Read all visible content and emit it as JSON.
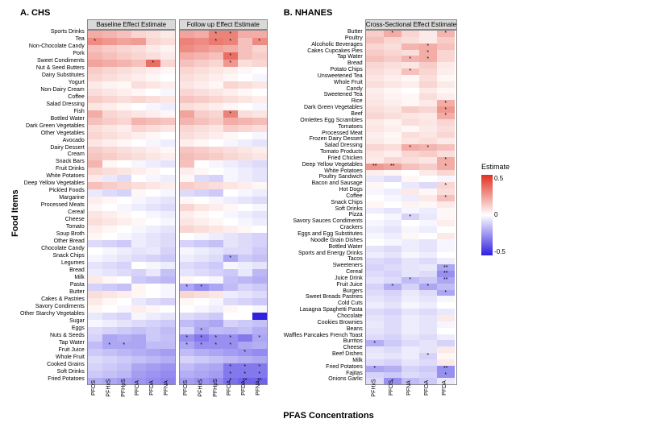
{
  "y_axis_label": "Food Items",
  "x_axis_label": "PFAS Concentrations",
  "legend": {
    "title": "Estimate",
    "max": 0.5,
    "mid": 0.0,
    "min": -0.5,
    "color_max": "#e03020",
    "color_mid": "#ffffff",
    "color_min": "#3020e0"
  },
  "panel_a": {
    "title": "A. CHS",
    "sub_headers": [
      "Baseline Effect Estimate",
      "Follow up Effect Estimate"
    ],
    "x_labels": [
      "PFOS",
      "PFHxS",
      "PFHpS",
      "PFOA",
      "PFDA",
      "PFNA"
    ],
    "row_labels": [
      "Sports Drinks",
      "Tea",
      "Non-Chocolate Candy",
      "Pork",
      "Sweet Condiments",
      "Nut & Seed Butters",
      "Dairy Substitutes",
      "Yogurt",
      "Non-Dairy Cream",
      "Coffee",
      "Salad Dressing",
      "Fish",
      "Bottled Water",
      "Dark Green Vegetables",
      "Other Vegetables",
      "Avocado",
      "Dairy Dessert",
      "Cream",
      "Snack Bars",
      "Fruit Drinks",
      "White Potatoes",
      "Deep Yellow Vegetables",
      "Pickled Foods",
      "Margarine",
      "Processed Meats",
      "Cereal",
      "Cheese",
      "Tomato",
      "Soup Broth",
      "Other Bread",
      "Chocolate Candy",
      "Snack Chips",
      "Legumes",
      "Bread",
      "Milk",
      "Pasta",
      "Butter",
      "Cakes & Pastries",
      "Savory Condiments",
      "Other Starchy Vegetables",
      "Sugar",
      "Eggs",
      "Nuts & Seeds",
      "Tap Water",
      "Fruit Juice",
      "Whole Fruit",
      "Cooked Grains",
      "Soft Drinks",
      "Fried Potatoes"
    ],
    "baseline": [
      [
        0.2,
        0.18,
        0.15,
        0.1,
        0.08,
        0.05
      ],
      [
        0.28,
        0.25,
        0.22,
        0.24,
        0.1,
        0.08
      ],
      [
        0.15,
        0.12,
        0.1,
        0.08,
        0.05,
        0.03
      ],
      [
        0.18,
        0.15,
        0.12,
        0.1,
        0.08,
        0.05
      ],
      [
        0.22,
        0.2,
        0.18,
        0.15,
        0.35,
        0.1
      ],
      [
        0.12,
        0.1,
        0.08,
        0.06,
        0.04,
        0.02
      ],
      [
        0.1,
        0.08,
        0.06,
        0.04,
        0.02,
        0.0
      ],
      [
        0.05,
        0.03,
        0.02,
        0.08,
        0.06,
        0.04
      ],
      [
        0.08,
        0.06,
        0.04,
        0.02,
        0.0,
        -0.02
      ],
      [
        0.12,
        0.1,
        0.08,
        0.1,
        0.08,
        0.06
      ],
      [
        0.06,
        0.04,
        0.02,
        0.0,
        -0.02,
        -0.04
      ],
      [
        0.2,
        0.1,
        0.08,
        0.06,
        0.04,
        0.02
      ],
      [
        0.15,
        0.12,
        0.1,
        0.18,
        0.16,
        0.14
      ],
      [
        0.08,
        0.06,
        0.04,
        0.1,
        0.08,
        0.06
      ],
      [
        0.1,
        0.08,
        0.06,
        0.04,
        0.02,
        0.0
      ],
      [
        0.06,
        0.04,
        0.02,
        0.0,
        -0.02,
        -0.04
      ],
      [
        0.12,
        0.1,
        0.08,
        0.06,
        0.04,
        0.02
      ],
      [
        0.14,
        0.12,
        0.1,
        0.08,
        0.06,
        0.04
      ],
      [
        0.18,
        0.02,
        0.0,
        -0.02,
        -0.04,
        -0.06
      ],
      [
        0.1,
        0.08,
        0.06,
        0.04,
        0.02,
        0.0
      ],
      [
        0.05,
        -0.05,
        -0.08,
        0.0,
        -0.02,
        -0.04
      ],
      [
        0.15,
        0.12,
        0.1,
        0.08,
        0.06,
        0.04
      ],
      [
        -0.05,
        -0.08,
        -0.1,
        0.02,
        0.0,
        -0.02
      ],
      [
        0.04,
        0.02,
        0.0,
        -0.02,
        -0.04,
        -0.06
      ],
      [
        0.02,
        0.0,
        -0.02,
        -0.04,
        -0.06,
        -0.08
      ],
      [
        0.06,
        0.04,
        0.02,
        0.0,
        -0.02,
        -0.04
      ],
      [
        0.08,
        0.06,
        0.04,
        0.02,
        0.0,
        -0.02
      ],
      [
        0.04,
        0.02,
        0.0,
        -0.02,
        -0.04,
        -0.06
      ],
      [
        0.02,
        0.0,
        -0.02,
        -0.04,
        -0.06,
        -0.08
      ],
      [
        -0.08,
        -0.1,
        -0.12,
        -0.04,
        -0.06,
        -0.08
      ],
      [
        0.0,
        -0.02,
        -0.04,
        -0.06,
        -0.05,
        -0.1
      ],
      [
        -0.02,
        -0.04,
        -0.06,
        -0.08,
        -0.1,
        -0.12
      ],
      [
        -0.06,
        -0.08,
        -0.1,
        0.0,
        -0.02,
        -0.04
      ],
      [
        -0.04,
        -0.06,
        -0.08,
        -0.1,
        -0.05,
        -0.14
      ],
      [
        0.05,
        0.02,
        0.0,
        -0.12,
        -0.14,
        -0.16
      ],
      [
        -0.1,
        -0.12,
        -0.14,
        0.02,
        0.0,
        -0.02
      ],
      [
        0.08,
        0.06,
        0.04,
        0.02,
        0.0,
        -0.02
      ],
      [
        0.05,
        0.02,
        0.0,
        -0.05,
        -0.08,
        -0.1
      ],
      [
        0.02,
        0.0,
        -0.02,
        0.04,
        0.02,
        0.0
      ],
      [
        -0.05,
        -0.08,
        -0.1,
        -0.02,
        -0.04,
        -0.06
      ],
      [
        -0.02,
        -0.04,
        -0.06,
        -0.08,
        -0.1,
        -0.12
      ],
      [
        -0.08,
        -0.1,
        -0.12,
        -0.14,
        -0.12,
        -0.15
      ],
      [
        -0.1,
        -0.2,
        -0.18,
        -0.2,
        -0.12,
        -0.14
      ],
      [
        -0.15,
        -0.2,
        -0.2,
        -0.2,
        -0.15,
        -0.15
      ],
      [
        -0.12,
        -0.14,
        -0.16,
        -0.18,
        -0.2,
        -0.22
      ],
      [
        -0.08,
        -0.1,
        -0.12,
        -0.14,
        -0.16,
        -0.18
      ],
      [
        -0.1,
        -0.12,
        -0.14,
        -0.2,
        -0.22,
        -0.24
      ],
      [
        -0.12,
        -0.14,
        -0.16,
        -0.22,
        -0.24,
        -0.26
      ],
      [
        -0.18,
        -0.2,
        -0.22,
        -0.24,
        -0.26,
        -0.28
      ]
    ],
    "followup": [
      [
        0.22,
        0.2,
        0.3,
        0.3,
        0.2,
        0.2
      ],
      [
        0.3,
        0.28,
        0.32,
        0.3,
        0.15,
        0.28
      ],
      [
        0.28,
        0.25,
        0.22,
        0.2,
        0.15,
        0.1
      ],
      [
        0.2,
        0.18,
        0.15,
        0.35,
        0.15,
        0.12
      ],
      [
        0.15,
        0.12,
        0.1,
        0.25,
        0.08,
        0.1
      ],
      [
        0.1,
        0.08,
        0.06,
        0.04,
        0.02,
        0.0
      ],
      [
        0.08,
        0.06,
        0.04,
        0.02,
        0.0,
        -0.02
      ],
      [
        0.06,
        0.04,
        0.02,
        0.1,
        0.08,
        0.06
      ],
      [
        0.1,
        0.08,
        0.06,
        0.04,
        0.02,
        0.0
      ],
      [
        0.14,
        0.12,
        0.1,
        0.08,
        0.06,
        0.04
      ],
      [
        0.08,
        0.06,
        0.04,
        0.02,
        0.0,
        -0.02
      ],
      [
        0.22,
        0.12,
        0.1,
        0.3,
        0.08,
        0.06
      ],
      [
        0.18,
        0.15,
        0.12,
        0.2,
        0.18,
        0.16
      ],
      [
        0.1,
        0.08,
        0.06,
        0.12,
        0.1,
        0.08
      ],
      [
        0.08,
        0.06,
        0.04,
        0.02,
        0.0,
        -0.02
      ],
      [
        0.04,
        0.02,
        0.0,
        -0.02,
        -0.04,
        -0.06
      ],
      [
        0.14,
        0.12,
        0.1,
        0.08,
        0.06,
        0.04
      ],
      [
        0.16,
        0.14,
        0.12,
        0.1,
        0.08,
        0.06
      ],
      [
        0.15,
        0.0,
        -0.02,
        -0.04,
        -0.06,
        -0.08
      ],
      [
        0.04,
        0.02,
        0.0,
        -0.02,
        -0.04,
        -0.06
      ],
      [
        0.02,
        -0.08,
        -0.1,
        -0.02,
        -0.04,
        -0.06
      ],
      [
        0.12,
        0.1,
        0.08,
        0.06,
        0.04,
        0.02
      ],
      [
        -0.08,
        -0.1,
        -0.12,
        0.0,
        -0.02,
        -0.04
      ],
      [
        0.02,
        0.0,
        -0.02,
        -0.04,
        -0.06,
        -0.08
      ],
      [
        0.1,
        0.06,
        0.04,
        0.02,
        0.0,
        -0.02
      ],
      [
        0.04,
        0.02,
        0.0,
        -0.02,
        -0.04,
        -0.06
      ],
      [
        0.06,
        0.04,
        0.02,
        0.0,
        -0.02,
        -0.04
      ],
      [
        0.1,
        0.08,
        0.06,
        0.04,
        0.02,
        0.0
      ],
      [
        0.0,
        -0.02,
        -0.04,
        -0.06,
        -0.08,
        -0.1
      ],
      [
        -0.1,
        -0.12,
        -0.14,
        -0.06,
        -0.08,
        -0.1
      ],
      [
        -0.02,
        -0.04,
        -0.06,
        -0.08,
        -0.08,
        -0.12
      ],
      [
        -0.04,
        -0.06,
        -0.08,
        -0.2,
        -0.12,
        -0.14
      ],
      [
        -0.08,
        -0.1,
        -0.12,
        -0.02,
        -0.04,
        -0.06
      ],
      [
        -0.06,
        -0.08,
        -0.1,
        -0.12,
        -0.05,
        -0.16
      ],
      [
        0.02,
        0.0,
        -0.02,
        -0.14,
        -0.16,
        -0.18
      ],
      [
        -0.2,
        -0.25,
        -0.2,
        -0.15,
        -0.1,
        -0.12
      ],
      [
        0.1,
        0.08,
        0.06,
        -0.04,
        -0.06,
        -0.08
      ],
      [
        0.02,
        0.0,
        -0.02,
        -0.08,
        -0.1,
        -0.12
      ],
      [
        0.0,
        -0.02,
        -0.04,
        0.02,
        0.0,
        -0.02
      ],
      [
        -0.08,
        -0.1,
        -0.12,
        0.0,
        0.0,
        -0.55
      ],
      [
        -0.15,
        -0.18,
        -0.2,
        -0.1,
        -0.12,
        -0.14
      ],
      [
        -0.1,
        -0.2,
        -0.15,
        -0.16,
        -0.14,
        -0.18
      ],
      [
        -0.25,
        -0.3,
        -0.25,
        -0.25,
        -0.3,
        -0.2
      ],
      [
        -0.2,
        -0.25,
        -0.25,
        -0.25,
        -0.2,
        -0.18
      ],
      [
        -0.15,
        -0.18,
        -0.2,
        -0.22,
        -0.24,
        -0.26
      ],
      [
        -0.1,
        -0.12,
        -0.14,
        -0.16,
        -0.18,
        -0.2
      ],
      [
        -0.15,
        -0.18,
        -0.2,
        -0.3,
        -0.3,
        -0.3
      ],
      [
        -0.18,
        -0.2,
        -0.22,
        -0.3,
        -0.3,
        -0.3
      ],
      [
        -0.22,
        -0.24,
        -0.26,
        -0.32,
        -0.35,
        -0.35
      ]
    ],
    "baseline_sig": {
      "1,0": "*",
      "4,4": "*",
      "43,1": "*",
      "43,2": "*"
    },
    "followup_sig": {
      "0,2": "*",
      "0,3": "*",
      "1,2": "*",
      "1,3": "*",
      "1,5": "*",
      "3,3": "*",
      "4,3": "*",
      "11,3": "*",
      "31,3": "*",
      "35,0": "*",
      "35,1": "*",
      "41,1": "*",
      "42,0": "*",
      "42,1": "*",
      "42,2": "*",
      "42,3": "*",
      "42,5": "*",
      "43,0": "*",
      "43,1": "*",
      "43,2": "*",
      "43,3": "*",
      "44,4": "*",
      "46,3": "*",
      "46,4": "*",
      "46,5": "*",
      "47,3": "*",
      "47,4": "*",
      "47,5": "*",
      "48,3": "*",
      "48,4": "**",
      "48,5": "**"
    }
  },
  "panel_b": {
    "title": "B. NHANES",
    "sub_header": "Cross-Sectional Effect Estimate",
    "x_labels": [
      "PFHxS",
      "PFOS",
      "PFNA",
      "PFOA",
      "PFDA"
    ],
    "row_labels": [
      "Butter",
      "Poultry",
      "Alcoholic Beverages",
      "Cakes Cupcakes Pies",
      "Tap Water",
      "Bread",
      "Potato Chips",
      "Unsweetened Tea",
      "Whole Fruit",
      "Candy",
      "Sweetened Tea",
      "Rice",
      "Dark Green Vegetables",
      "Beef",
      "Omlettes Egg Scrambles",
      "Tomatoes",
      "Processed Meat",
      "Frozen Dairy Dessert",
      "Salad Dressing",
      "Tomato Products",
      "Fried Chicken",
      "Deep Yellow Vegetables",
      "White Potatoes",
      "Poultry Sandwich",
      "Bacon and Sausage",
      "Hot Dogs",
      "Coffee",
      "Snack Chips",
      "Soft Drinks",
      "Pizza",
      "Savory Sauces Condiments",
      "Crackers",
      "Eggs and Egg Substitutes",
      "Noodle Grain Dishes",
      "Bottled Water",
      "Sports and Energy Drinks",
      "Tacos",
      "Sweeteners",
      "Cereal",
      "Juice Drink",
      "Fruit Juice",
      "Burgers",
      "Sweet Breads Pastries",
      "Cold Cuts",
      "Lasagna Spaghetti Pasta",
      "Chocolate",
      "Cookies Brownies",
      "Beans",
      "Waffles Pancakes French Toast",
      "Burritos",
      "Cheese",
      "Beef Dishes",
      "Milk",
      "Fried Potatoes",
      "Fajitas",
      "Onions Garlic"
    ],
    "values": [
      [
        0.12,
        0.2,
        0.1,
        0.05,
        0.18
      ],
      [
        0.15,
        0.1,
        0.08,
        0.05,
        0.12
      ],
      [
        0.1,
        0.08,
        0.18,
        0.2,
        0.15
      ],
      [
        0.12,
        0.1,
        0.08,
        0.2,
        0.1
      ],
      [
        0.15,
        0.12,
        0.18,
        0.2,
        0.1
      ],
      [
        0.1,
        0.08,
        0.06,
        0.12,
        0.05
      ],
      [
        0.08,
        0.06,
        0.15,
        0.1,
        0.04
      ],
      [
        0.06,
        0.04,
        0.02,
        0.08,
        0.02
      ],
      [
        0.08,
        0.06,
        0.04,
        0.1,
        0.05
      ],
      [
        0.04,
        0.02,
        0.0,
        0.05,
        0.02
      ],
      [
        0.05,
        0.03,
        0.02,
        0.08,
        0.04
      ],
      [
        0.06,
        0.04,
        0.02,
        0.05,
        0.2
      ],
      [
        0.08,
        0.06,
        0.12,
        0.1,
        0.25
      ],
      [
        0.1,
        0.08,
        0.06,
        0.05,
        0.2
      ],
      [
        0.05,
        0.03,
        0.08,
        0.06,
        0.1
      ],
      [
        0.06,
        0.04,
        0.02,
        0.05,
        0.08
      ],
      [
        0.04,
        0.02,
        0.08,
        0.06,
        0.1
      ],
      [
        0.05,
        0.03,
        0.06,
        0.08,
        0.05
      ],
      [
        0.1,
        0.08,
        0.2,
        0.18,
        0.15
      ],
      [
        0.06,
        0.04,
        0.1,
        0.12,
        0.08
      ],
      [
        0.05,
        0.1,
        0.08,
        0.06,
        0.2
      ],
      [
        0.25,
        0.22,
        0.15,
        0.12,
        0.2
      ],
      [
        0.04,
        0.02,
        0.0,
        0.05,
        0.1
      ],
      [
        -0.05,
        -0.08,
        0.02,
        0.0,
        -0.02
      ],
      [
        0.02,
        0.0,
        -0.05,
        -0.08,
        0.1
      ],
      [
        -0.02,
        -0.04,
        0.05,
        0.02,
        0.08
      ],
      [
        0.0,
        -0.02,
        -0.04,
        0.05,
        0.15
      ],
      [
        0.02,
        0.0,
        0.03,
        0.02,
        0.05
      ],
      [
        -0.04,
        -0.06,
        -0.02,
        -0.04,
        0.02
      ],
      [
        0.0,
        -0.02,
        -0.1,
        -0.05,
        0.02
      ],
      [
        -0.02,
        -0.04,
        0.0,
        -0.02,
        0.04
      ],
      [
        -0.04,
        -0.06,
        -0.02,
        -0.04,
        0.0
      ],
      [
        -0.02,
        -0.04,
        0.02,
        0.0,
        0.05
      ],
      [
        0.0,
        -0.02,
        -0.04,
        -0.06,
        -0.02
      ],
      [
        -0.06,
        -0.08,
        -0.04,
        -0.06,
        -0.02
      ],
      [
        -0.04,
        -0.06,
        -0.02,
        -0.04,
        0.0
      ],
      [
        -0.08,
        -0.1,
        -0.06,
        -0.08,
        -0.04
      ],
      [
        -0.1,
        -0.08,
        -0.06,
        -0.05,
        -0.2
      ],
      [
        -0.08,
        -0.1,
        -0.06,
        -0.08,
        -0.25
      ],
      [
        -0.06,
        -0.08,
        -0.15,
        -0.12,
        -0.2
      ],
      [
        -0.1,
        -0.18,
        -0.1,
        -0.2,
        -0.15
      ],
      [
        -0.08,
        -0.1,
        -0.05,
        -0.08,
        -0.2
      ],
      [
        -0.06,
        -0.08,
        -0.04,
        -0.06,
        -0.02
      ],
      [
        -0.04,
        -0.06,
        -0.02,
        -0.04,
        0.0
      ],
      [
        -0.08,
        -0.1,
        -0.06,
        -0.08,
        -0.05
      ],
      [
        -0.06,
        -0.08,
        -0.04,
        -0.06,
        0.05
      ],
      [
        -0.05,
        -0.08,
        -0.04,
        -0.06,
        -0.02
      ],
      [
        -0.06,
        -0.08,
        -0.04,
        -0.06,
        0.0
      ],
      [
        -0.08,
        -0.1,
        -0.06,
        -0.08,
        -0.04
      ],
      [
        -0.18,
        -0.12,
        -0.08,
        -0.06,
        -0.1
      ],
      [
        -0.06,
        -0.08,
        -0.04,
        -0.06,
        0.05
      ],
      [
        -0.05,
        -0.06,
        -0.04,
        -0.1,
        0.02
      ],
      [
        -0.08,
        -0.1,
        -0.06,
        -0.08,
        0.05
      ],
      [
        -0.2,
        -0.18,
        -0.1,
        -0.12,
        -0.25
      ],
      [
        -0.1,
        -0.12,
        -0.08,
        -0.1,
        -0.25
      ],
      [
        -0.08,
        -0.25,
        -0.15,
        -0.12,
        -0.05
      ]
    ],
    "sig": {
      "0,1": "*",
      "0,4": "*",
      "2,3": "*",
      "3,3": "*",
      "4,2": "*",
      "4,3": "*",
      "6,2": "*",
      "11,4": "*",
      "12,4": "*",
      "13,4": "*",
      "18,2": "*",
      "18,3": "*",
      "20,4": "*",
      "21,0": "**",
      "21,1": "**",
      "21,4": "*",
      "24,4": "*",
      "26,4": "*",
      "29,2": "*",
      "37,4": "**",
      "38,4": "**",
      "39,2": "*",
      "39,4": "**",
      "40,1": "*",
      "40,3": "*",
      "41,4": "*",
      "49,0": "*",
      "51,3": "*",
      "53,0": "*",
      "53,4": "**",
      "54,4": "*",
      "55,1": "*"
    }
  }
}
